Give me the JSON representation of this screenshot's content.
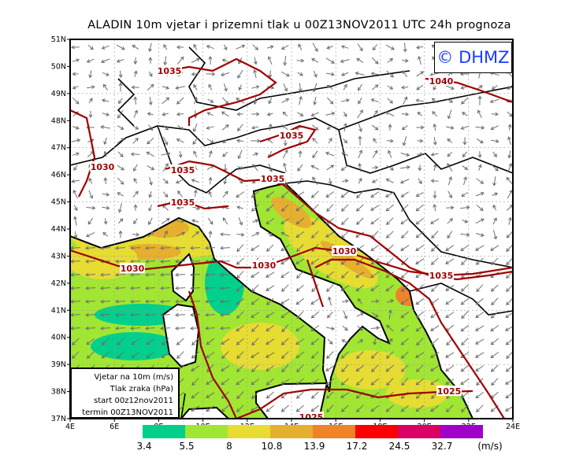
{
  "title": "ALADIN 10m vjetar i prizemni tlak u 00Z13NOV2011 UTC 24h prognoza",
  "logo": "© DHMZ",
  "map": {
    "lat_labels": [
      "51N",
      "50N",
      "49N",
      "48N",
      "47N",
      "46N",
      "45N",
      "44N",
      "43N",
      "42N",
      "41N",
      "40N",
      "39N",
      "38N",
      "37N"
    ],
    "lon_labels": [
      "4E",
      "6E",
      "8E",
      "10E",
      "12E",
      "14E",
      "16E",
      "18E",
      "20E",
      "22E",
      "24E"
    ],
    "isobar_labels": [
      "1035",
      "1035",
      "1030",
      "1035",
      "1035",
      "1035",
      "1030",
      "1030",
      "1030",
      "1035",
      "1040",
      "1025",
      "1025"
    ],
    "colors": {
      "isobar": "#a00000",
      "coast": "#000000",
      "arrow": "#6e6e6e"
    }
  },
  "info_box": {
    "line1": "Vjetar na 10m (m/s)",
    "line2": "Tlak zraka (hPa)",
    "line3": "start 00z12nov2011",
    "line4": "termin 00Z13NOV2011"
  },
  "colorbar": {
    "colors": [
      "#00d08c",
      "#a0e632",
      "#e6dc32",
      "#e6af2d",
      "#f08228",
      "#fa0000",
      "#dc0064",
      "#a000c8"
    ],
    "labels": [
      "3.4",
      "5.5",
      "8",
      "10.8",
      "13.9",
      "17.2",
      "24.5",
      "32.7"
    ],
    "unit": "(m/s)"
  }
}
